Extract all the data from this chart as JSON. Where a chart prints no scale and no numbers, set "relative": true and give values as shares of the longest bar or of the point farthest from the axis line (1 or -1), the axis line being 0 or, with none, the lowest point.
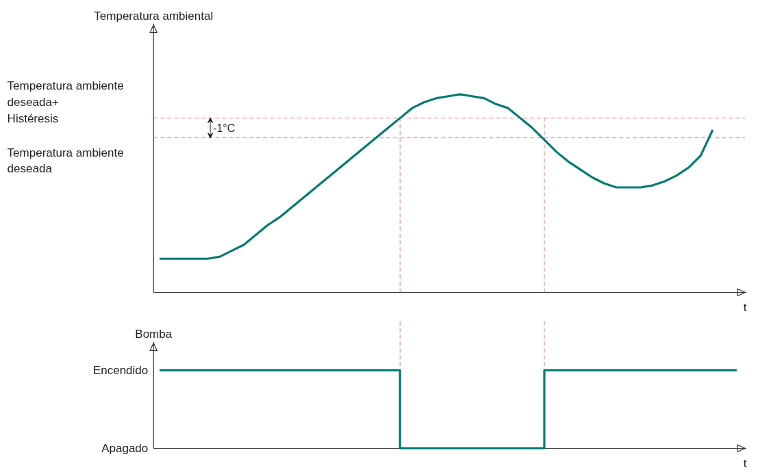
{
  "chart_data": [
    {
      "type": "line",
      "relative": true,
      "ylabel": "Temperatura ambiental",
      "xlabel": "t",
      "marker": "none",
      "line_style": "solid",
      "categories": [
        null,
        null,
        null,
        null,
        null,
        null,
        null,
        null,
        null,
        null,
        null,
        null,
        null,
        null,
        null,
        null,
        null,
        null,
        null,
        null,
        null,
        null,
        null,
        null,
        null,
        null,
        null,
        null,
        null,
        null,
        null,
        null,
        null,
        null,
        null,
        null,
        null,
        null,
        null,
        null,
        null,
        null,
        null,
        null,
        null,
        null,
        null,
        null,
        null
      ],
      "series": [
        {
          "color": "#007b73",
          "values": [
            0.17,
            0.17,
            0.17,
            0.17,
            0.17,
            0.18,
            0.21,
            0.24,
            0.29,
            0.34,
            0.38,
            0.43,
            0.48,
            0.53,
            0.58,
            0.63,
            0.68,
            0.73,
            0.78,
            0.83,
            0.88,
            0.93,
            0.96,
            0.98,
            0.99,
            1,
            0.99,
            0.98,
            0.95,
            0.93,
            0.88,
            0.83,
            0.77,
            0.71,
            0.66,
            0.62,
            0.58,
            0.55,
            0.53,
            0.53,
            0.53,
            0.54,
            0.56,
            0.59,
            0.63,
            0.69,
            0.82,
            null,
            null
          ]
        }
      ],
      "ref_lines": [
        {
          "axis": "y",
          "value": 0.88,
          "label": "Temperatura ambiente\ndeseada+\nHistéresis",
          "color": "#e8735a",
          "line_style": "dashed"
        },
        {
          "axis": "y",
          "value": 0.78,
          "label": "Temperatura ambiente\ndeseada",
          "color": "#e8735a",
          "line_style": "dashed"
        }
      ],
      "annotations": [
        "-1°C"
      ]
    },
    {
      "type": "step",
      "relative": true,
      "ylabel": "Bomba",
      "xlabel": "t",
      "marker": "none",
      "line_style": "solid",
      "annotations": [
        "Encendido",
        "Apagado"
      ],
      "categories": [
        null,
        null,
        null,
        null,
        null,
        null,
        null,
        null,
        null,
        null,
        null,
        null,
        null,
        null,
        null,
        null,
        null,
        null,
        null,
        null,
        null,
        null,
        null,
        null,
        null,
        null,
        null,
        null,
        null,
        null,
        null,
        null,
        null,
        null,
        null,
        null,
        null,
        null,
        null,
        null,
        null,
        null,
        null,
        null,
        null,
        null,
        null,
        null,
        null
      ],
      "series": [
        {
          "color": "#007b73",
          "values": [
            1,
            1,
            1,
            1,
            1,
            1,
            1,
            1,
            1,
            1,
            1,
            1,
            1,
            1,
            1,
            1,
            1,
            1,
            1,
            1,
            0,
            0,
            0,
            0,
            0,
            0,
            0,
            0,
            0,
            0,
            0,
            0,
            1,
            1,
            1,
            1,
            1,
            1,
            1,
            1,
            1,
            1,
            1,
            1,
            1,
            1,
            1,
            1,
            1
          ]
        }
      ]
    }
  ]
}
